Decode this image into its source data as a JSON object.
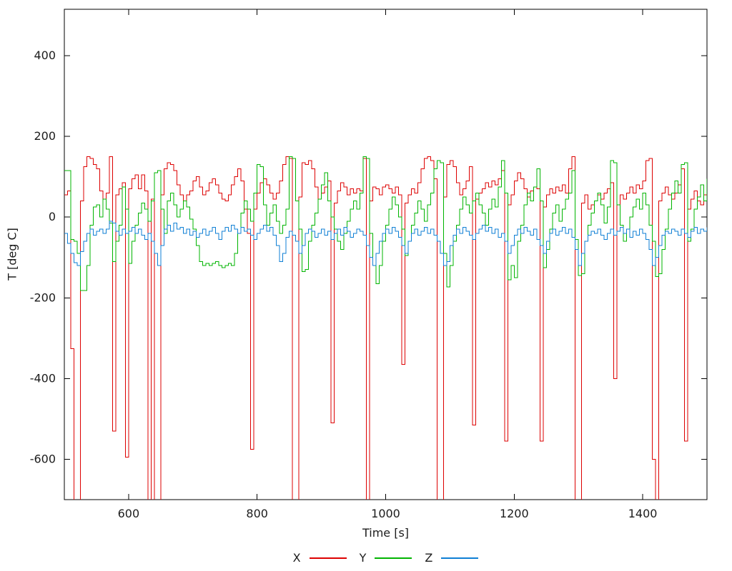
{
  "chart_data": {
    "type": "line",
    "style": "steps-post",
    "xlabel": "Time [s]",
    "ylabel": "T [deg C]",
    "xlim": [
      500,
      1500
    ],
    "ylim": [
      -700,
      515
    ],
    "x_ticks": [
      600,
      800,
      1000,
      1200,
      1400
    ],
    "y_ticks": [
      400,
      200,
      0,
      -200,
      -400,
      -600
    ],
    "grid": false,
    "legend_position": "bottom-center",
    "t_start": 500,
    "t_step": 5,
    "series": [
      {
        "name": "X",
        "color": "#dd0000",
        "values": [
          55,
          65,
          -326,
          -720,
          -720,
          40,
          125,
          150,
          145,
          130,
          120,
          65,
          45,
          60,
          150,
          -530,
          55,
          70,
          85,
          -595,
          70,
          95,
          105,
          70,
          105,
          65,
          -720,
          45,
          -720,
          -720,
          55,
          120,
          135,
          130,
          115,
          80,
          55,
          40,
          55,
          65,
          90,
          100,
          75,
          55,
          65,
          85,
          95,
          80,
          60,
          45,
          40,
          55,
          80,
          100,
          120,
          90,
          20,
          -40,
          -575,
          20,
          60,
          85,
          95,
          80,
          60,
          45,
          60,
          90,
          130,
          150,
          145,
          -720,
          -720,
          50,
          135,
          130,
          140,
          120,
          75,
          45,
          60,
          75,
          90,
          -510,
          35,
          65,
          85,
          75,
          55,
          70,
          60,
          70,
          65,
          145,
          -720,
          40,
          75,
          70,
          55,
          75,
          80,
          70,
          60,
          75,
          55,
          -365,
          35,
          55,
          70,
          60,
          85,
          120,
          145,
          150,
          140,
          95,
          -720,
          -720,
          50,
          130,
          140,
          125,
          85,
          55,
          70,
          90,
          125,
          -515,
          45,
          60,
          70,
          85,
          75,
          90,
          80,
          95,
          115,
          -555,
          30,
          55,
          90,
          110,
          95,
          70,
          50,
          65,
          75,
          70,
          -555,
          25,
          55,
          70,
          60,
          75,
          65,
          80,
          60,
          120,
          150,
          -720,
          -720,
          35,
          55,
          20,
          30,
          40,
          55,
          45,
          60,
          70,
          85,
          -400,
          30,
          55,
          45,
          60,
          75,
          60,
          80,
          70,
          90,
          140,
          145,
          -600,
          -720,
          40,
          60,
          75,
          55,
          45,
          60,
          80,
          120,
          -555,
          20,
          45,
          65,
          40,
          30,
          55,
          65
        ]
      },
      {
        "name": "Y",
        "color": "#00b400",
        "values": [
          115,
          115,
          -55,
          -60,
          -90,
          -182,
          -182,
          -120,
          -20,
          25,
          30,
          0,
          45,
          20,
          -15,
          -110,
          -60,
          -20,
          75,
          20,
          -115,
          -60,
          -20,
          10,
          35,
          20,
          -10,
          40,
          110,
          115,
          20,
          -40,
          40,
          60,
          30,
          0,
          20,
          40,
          25,
          -5,
          -30,
          -70,
          -110,
          -120,
          -115,
          -120,
          -115,
          -110,
          -120,
          -125,
          -120,
          -115,
          -120,
          -90,
          -40,
          10,
          40,
          20,
          -10,
          60,
          130,
          125,
          30,
          -20,
          10,
          30,
          -10,
          -40,
          -20,
          20,
          150,
          145,
          40,
          -30,
          -135,
          -130,
          -60,
          -20,
          10,
          45,
          80,
          110,
          40,
          0,
          -30,
          -60,
          -80,
          -40,
          -10,
          20,
          40,
          20,
          60,
          150,
          145,
          -40,
          -120,
          -165,
          -120,
          -60,
          -20,
          20,
          50,
          30,
          0,
          -30,
          -95,
          -60,
          -20,
          10,
          40,
          20,
          -10,
          30,
          60,
          120,
          140,
          135,
          -90,
          -173,
          -120,
          -60,
          -20,
          20,
          50,
          30,
          10,
          40,
          60,
          30,
          10,
          -20,
          20,
          45,
          25,
          75,
          140,
          60,
          -155,
          -120,
          -150,
          -60,
          -20,
          30,
          60,
          40,
          75,
          120,
          40,
          -125,
          -80,
          -30,
          10,
          30,
          -10,
          20,
          45,
          60,
          115,
          -55,
          -145,
          -140,
          -60,
          -20,
          10,
          40,
          60,
          30,
          -15,
          25,
          140,
          135,
          30,
          -20,
          -60,
          -30,
          0,
          25,
          45,
          20,
          60,
          30,
          -20,
          -60,
          -147,
          -140,
          -80,
          -30,
          20,
          60,
          90,
          60,
          130,
          135,
          -60,
          -30,
          20,
          50,
          80,
          40,
          95
        ]
      },
      {
        "name": "Z",
        "color": "#0f7fd4",
        "values": [
          -40,
          -65,
          -90,
          -113,
          -120,
          -85,
          -60,
          -40,
          -30,
          -45,
          -35,
          -30,
          -40,
          -30,
          -10,
          -15,
          -35,
          -45,
          -30,
          -40,
          -35,
          -25,
          -40,
          -30,
          -45,
          -55,
          -40,
          -60,
          -90,
          -120,
          -70,
          -30,
          -20,
          -35,
          -15,
          -30,
          -25,
          -40,
          -30,
          -45,
          -35,
          -50,
          -40,
          -30,
          -45,
          -35,
          -25,
          -40,
          -55,
          -35,
          -25,
          -35,
          -20,
          -30,
          -40,
          -25,
          -35,
          -30,
          -45,
          -55,
          -40,
          -30,
          -20,
          -35,
          -25,
          -45,
          -70,
          -110,
          -90,
          -50,
          -35,
          -45,
          -60,
          -90,
          -70,
          -40,
          -30,
          -35,
          -50,
          -40,
          -30,
          -45,
          -35,
          -55,
          -40,
          -30,
          -45,
          -25,
          -35,
          -50,
          -40,
          -30,
          -35,
          -45,
          -70,
          -100,
          -120,
          -90,
          -60,
          -40,
          -30,
          -40,
          -25,
          -35,
          -50,
          -70,
          -90,
          -60,
          -40,
          -30,
          -45,
          -35,
          -25,
          -40,
          -30,
          -45,
          -60,
          -90,
          -120,
          -110,
          -70,
          -45,
          -30,
          -40,
          -25,
          -35,
          -45,
          -55,
          -40,
          -30,
          -20,
          -35,
          -25,
          -40,
          -30,
          -50,
          -40,
          -60,
          -90,
          -70,
          -45,
          -30,
          -40,
          -25,
          -35,
          -45,
          -30,
          -55,
          -70,
          -90,
          -60,
          -40,
          -30,
          -45,
          -35,
          -25,
          -40,
          -30,
          -50,
          -80,
          -120,
          -90,
          -60,
          -45,
          -35,
          -40,
          -30,
          -45,
          -55,
          -40,
          -30,
          -45,
          -35,
          -25,
          -40,
          -30,
          -50,
          -35,
          -45,
          -30,
          -40,
          -55,
          -80,
          -120,
          -100,
          -70,
          -45,
          -35,
          -40,
          -30,
          -35,
          -45,
          -30,
          -40,
          -50,
          -35,
          -25,
          -40,
          -30,
          -35,
          -25
        ]
      }
    ]
  }
}
